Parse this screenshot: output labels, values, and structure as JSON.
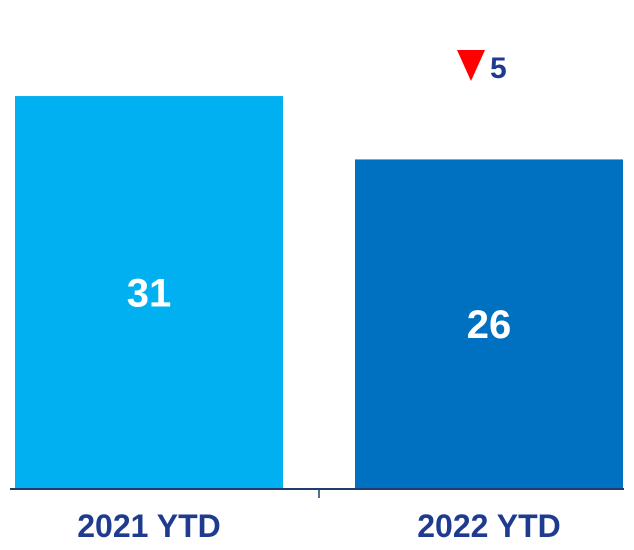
{
  "chart_data": {
    "type": "bar",
    "categories": [
      "2021 YTD",
      "2022 YTD"
    ],
    "values": [
      31,
      26
    ],
    "value_labels": [
      "31",
      "26"
    ],
    "ylim": [
      0,
      37
    ],
    "grid": false,
    "legend": "none",
    "title": "",
    "xlabel": "",
    "ylabel": "",
    "change": {
      "direction": "down",
      "label": "5",
      "icon": "red-down-triangle-icon"
    }
  },
  "colors": {
    "bars": [
      "#00B0F0",
      "#0070C0"
    ],
    "value_text": "#FFFFFF",
    "category_text": "#1F3B8F",
    "axis": "#1F3B6F",
    "change_indicator": "#FF0000",
    "change_text": "#1F3B8F"
  }
}
